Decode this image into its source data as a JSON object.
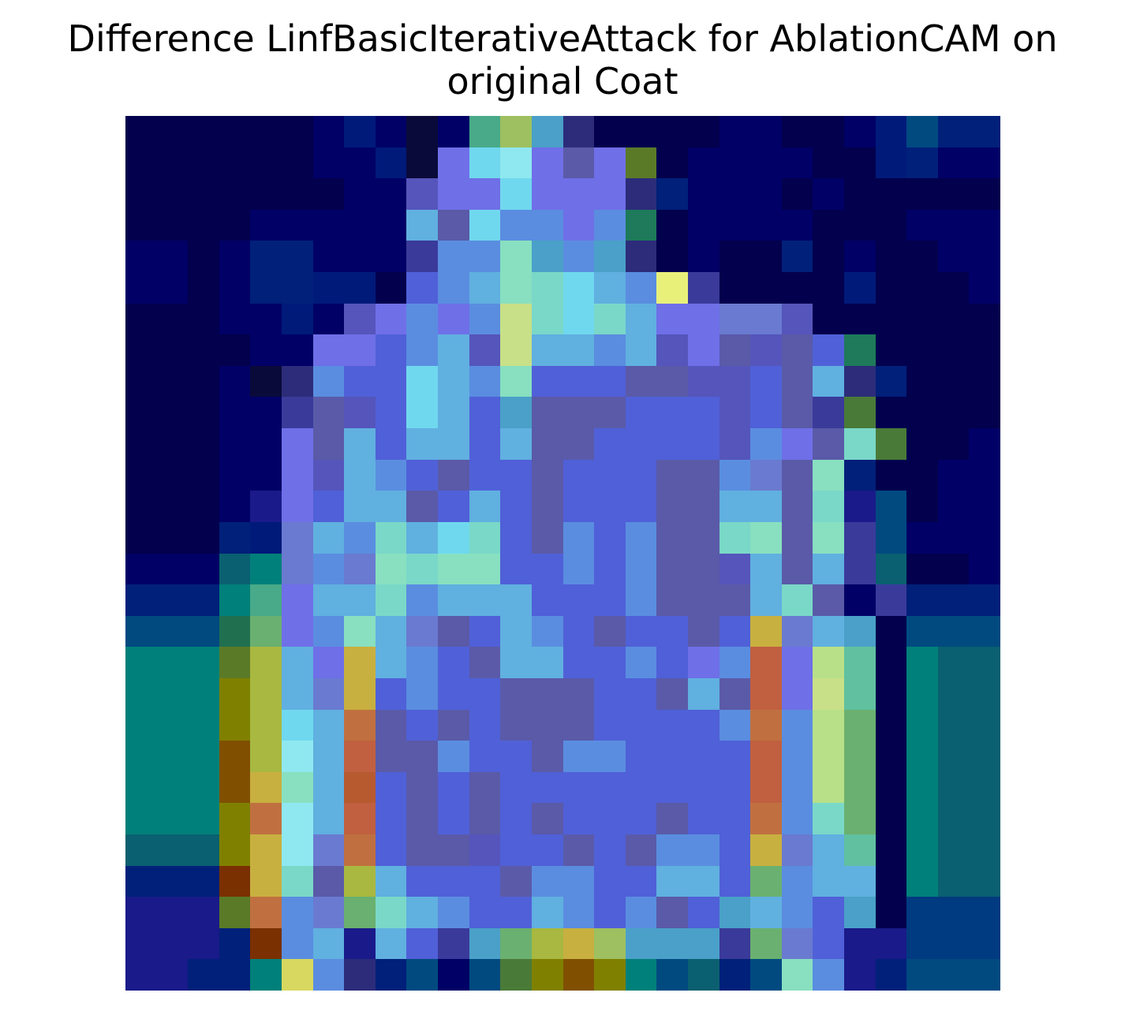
{
  "figure": {
    "title_line1": "Difference LinfBasicIterativeAttack for AblationCAM on",
    "title_line2": "original Coat"
  },
  "grid": {
    "rows": 28,
    "cols": 28,
    "palette": {
      "a": "#03004d",
      "b": "#000066",
      "c": "#001a7a",
      "d": "#0a0a3a",
      "e": "#5555bb",
      "f": "#6f6fe8",
      "g": "#5a8de0",
      "h": "#70d8ee",
      "i": "#8fe8f0",
      "j": "#9ec060",
      "k": "#48aa88",
      "l": "#4aa0c8",
      "m": "#2c2c7a",
      "n": "#5a7a28",
      "o": "#e8f07a",
      "p": "#1e7a5a",
      "q": "#c8e088",
      "r": "#88e0c0",
      "s": "#5a5aa8",
      "t": "#4a7a38",
      "u": "#0a6070",
      "v": "#00807a",
      "w": "#207050",
      "x": "#6ab070",
      "y": "#a8b840",
      "z": "#c8b040",
      "A": "#c07040",
      "B": "#b85a30",
      "C": "#805000",
      "D": "#808000",
      "E": "#c06040",
      "F": "#7a3000",
      "G": "#004a80",
      "H": "#003a80",
      "I": "#00207a",
      "J": "#d8d860",
      "K": "#5060d8",
      "L": "#60b0e0",
      "M": "#7ad8c8",
      "N": "#6a7ad0",
      "O": "#b8e088",
      "P": "#60c0a0",
      "Q": "#3a3a9a",
      "R": "#1a1a8a"
    },
    "cells": [
      "aaaaaabcbdbkjlmaaaabbaabcGII",
      "aaaaaabbcdfhifsfnabbbbaacIbb",
      "aaaaaaabbeffhfffmIbbbabaaaaa",
      "aaaabbbbbLshggfgpabbbbaaabbb",
      "bbabIIbbbQggrlglmabaaIabaabb",
      "bbabIIccaKgLrMhLgoQaaaacaaab",
      "aaabbcbefgfgqMhMLffNNeaaaaaa",
      "aaaabbffKgLeqLLgLefsesKpaaaa",
      "aaabdmgKKhLgrKKKsseeKsLmIaaa",
      "aaabbQseKhLKlsssKKKeKsQtaaaa",
      "aaabbfsLKLLKLssKKKKegfsMtaab",
      "aaabbfeLgKsKKsKKKssgNsrIaabb",
      "aaabRfKLLsKLKsKKKssLLsMRGabb",
      "aaaIcNLgMLhMKsgKgssMrsrQGbbb",
      "bbbuvNgNrMrrKKgKgsseLsLQuaab",
      "IIIvkfLLMgLLLKKKgsssLMsSQIII",
      "GGGwxfgrLNsKLgKsKKsKzNLlaGGG",
      "vvvnyLfzLgKsLLKKgKfgEfOPavuu",
      "vvvDyLNzKgKKsssKKsLsEfqPavuu",
      "vvvDyhLAsKsKsssKKKKgAgOxavuu",
      "vvvCyiLEssgKKsggKKKKEgOxavuu",
      "vvvCzrLBKsKsKKKKKKKKEgOxavuu",
      "vvvDAiLEKsKsKsKKKsKKAgMxavuu",
      "uuuDziNAKsseKKsKsggKzNLPavuu",
      "IIIFzMsyLKKKsggKKLLKxgLLavuu",
      "RRRnAgNxMLgKKLgKgsKlLgKlaHHH",
      "RRRIFgLRLKQlxyzjlllQxNKRRHHH",
      "RRIIvJgmIGbGtDCDvGuIGrgRIGGG"
    ]
  }
}
